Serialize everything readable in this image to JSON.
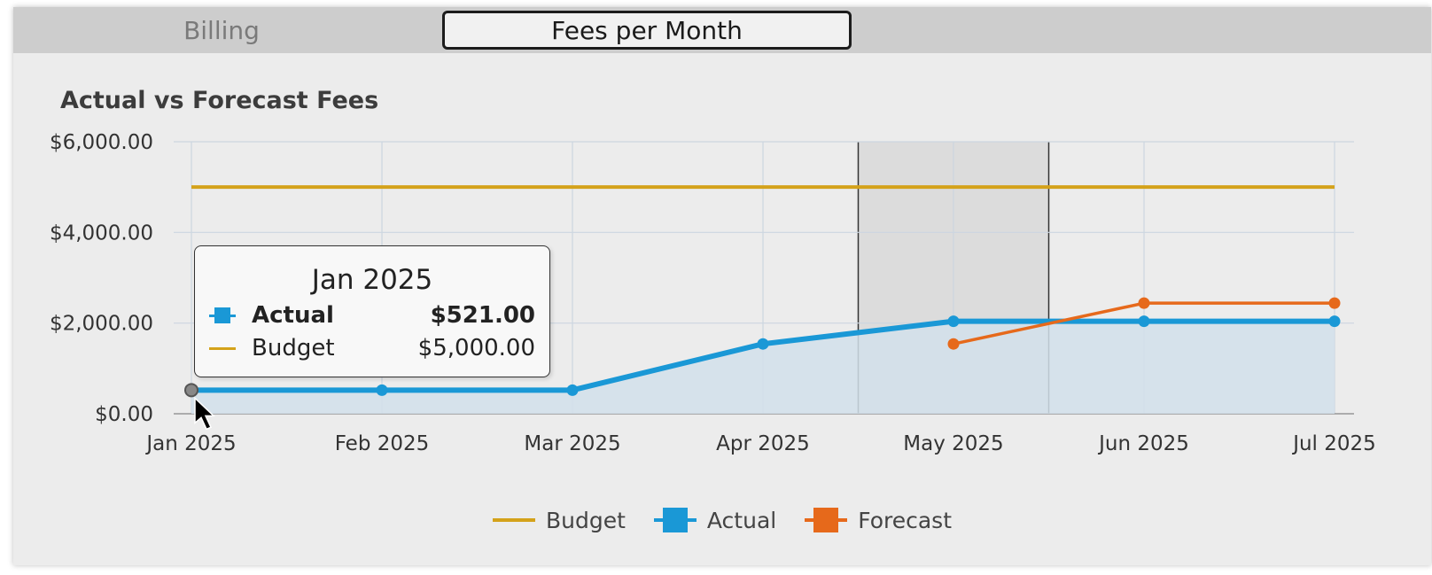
{
  "tabs": [
    {
      "label": "Billing",
      "active": false
    },
    {
      "label": "Fees per Month",
      "active": true
    }
  ],
  "colors": {
    "budget": "#d4a21a",
    "actual": "#1a98d6",
    "forecast": "#e6691b",
    "area_fill": "#d2e0eb",
    "band": "#dcdcdc",
    "grid": "#ccd6e0"
  },
  "chart_data": {
    "type": "line",
    "title": "Actual vs Forecast Fees",
    "x": [
      "Jan 2025",
      "Feb 2025",
      "Mar 2025",
      "Apr 2025",
      "May 2025",
      "Jun 2025",
      "Jul 2025"
    ],
    "yticks": [
      "$0.00",
      "$2,000.00",
      "$4,000.00",
      "$6,000.00"
    ],
    "ylim": [
      0,
      6000
    ],
    "grid": true,
    "legend_position": "bottom-center",
    "highlighted_band": {
      "from": "Apr 2025 (mid)",
      "to": "May 2025 (mid)",
      "x_range": [
        3.5,
        4.5
      ]
    },
    "series": [
      {
        "name": "Budget",
        "style": "line",
        "values": [
          5000,
          5000,
          5000,
          5000,
          5000,
          5000,
          5000
        ]
      },
      {
        "name": "Actual",
        "style": "area-line",
        "values": [
          521,
          521,
          521,
          1540,
          2040,
          2040,
          2040
        ]
      },
      {
        "name": "Forecast",
        "style": "line",
        "values": [
          null,
          null,
          null,
          null,
          1540,
          2440,
          2440
        ]
      }
    ]
  },
  "tooltip": {
    "title": "Jan 2025",
    "rows": [
      {
        "label": "Actual",
        "value": "$521.00"
      },
      {
        "label": "Budget",
        "value": "$5,000.00"
      }
    ]
  },
  "legend": [
    {
      "label": "Budget",
      "icon": "line-icon"
    },
    {
      "label": "Actual",
      "icon": "square-icon"
    },
    {
      "label": "Forecast",
      "icon": "square-icon"
    }
  ]
}
